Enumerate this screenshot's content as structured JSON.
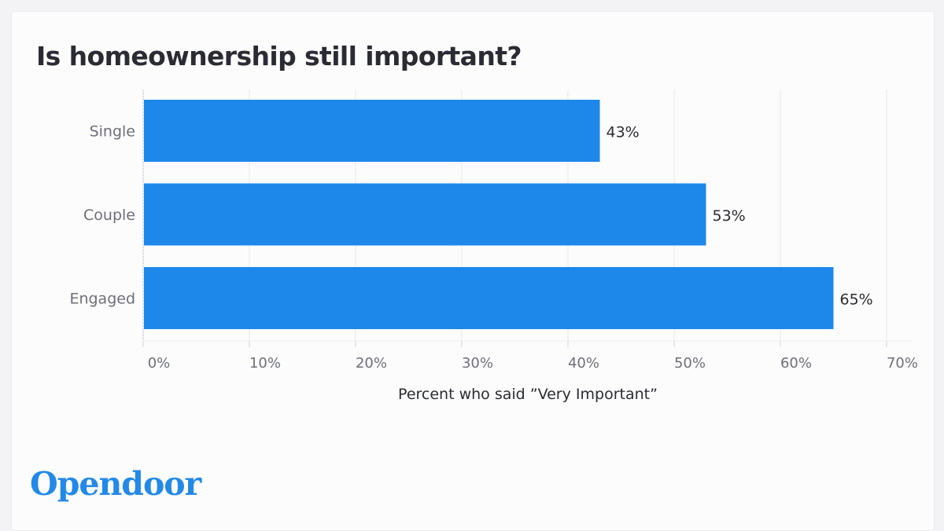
{
  "title": "Is homeownership still important?",
  "brand": "Opendoor",
  "colors": {
    "bar": "#1e87ea",
    "grid": "#e7e7ec",
    "tick_text": "#6e6e78",
    "label_text": "#2b2b33",
    "brand": "#2389e8"
  },
  "chart_data": {
    "type": "bar",
    "orientation": "horizontal",
    "title": "Is homeownership still important?",
    "xlabel": "Percent who said ”Very Important”",
    "ylabel": "",
    "categories": [
      "Single",
      "Couple",
      "Engaged"
    ],
    "values": [
      43,
      53,
      65
    ],
    "data_labels": [
      "43%",
      "53%",
      "65%"
    ],
    "xlim": [
      0,
      70
    ],
    "xticks": [
      0,
      10,
      20,
      30,
      40,
      50,
      60,
      70
    ],
    "xtick_labels": [
      "0%",
      "10%",
      "20%",
      "30%",
      "40%",
      "50%",
      "60%",
      "70%"
    ],
    "grid": true,
    "legend": "none"
  }
}
